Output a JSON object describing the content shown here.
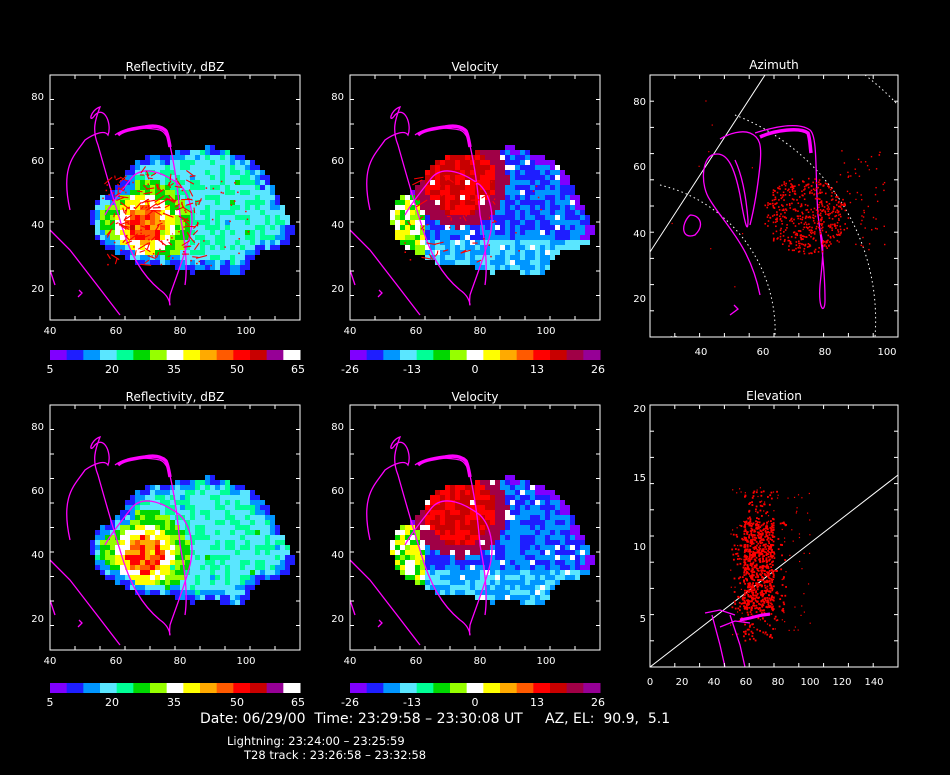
{
  "colors": {
    "background": "#000000",
    "axes": "#ffffff",
    "track": "#ff00ff",
    "lightning": "#ff0000",
    "palette": [
      "#8000ff",
      "#1e1eff",
      "#0096ff",
      "#5ae6ff",
      "#00ff96",
      "#00d700",
      "#96ff00",
      "#ffffff",
      "#ffff00",
      "#ffaa00",
      "#ff5a00",
      "#ff0000",
      "#c80000",
      "#a00046",
      "#960096"
    ]
  },
  "panels": [
    {
      "id": "refl-top",
      "title": "Reflectivity, dBZ",
      "field": "reflectivity",
      "xticks": [
        "40",
        "60",
        "80",
        "100"
      ],
      "yticks": [
        "20",
        "40",
        "60",
        "80"
      ],
      "colorbar_ticks": [
        "5",
        "20",
        "35",
        "50",
        "65"
      ],
      "lightning": "heavy"
    },
    {
      "id": "vel-top",
      "title": "Velocity",
      "field": "velocity",
      "xticks": [
        "40",
        "60",
        "80",
        "100"
      ],
      "yticks": [
        "20",
        "40",
        "60",
        "80"
      ],
      "colorbar_ticks": [
        "-26",
        "-13",
        "0",
        "13",
        "26"
      ],
      "lightning": "light"
    },
    {
      "id": "az",
      "title": "Azimuth",
      "xticks": [
        "40",
        "60",
        "80",
        "100"
      ],
      "yticks": [
        "20",
        "40",
        "60",
        "80"
      ]
    },
    {
      "id": "refl-bot",
      "title": "Reflectivity, dBZ",
      "field": "reflectivity",
      "xticks": [
        "40",
        "60",
        "80",
        "100"
      ],
      "yticks": [
        "20",
        "40",
        "60",
        "80"
      ],
      "colorbar_ticks": [
        "5",
        "20",
        "35",
        "50",
        "65"
      ],
      "lightning": "none"
    },
    {
      "id": "vel-bot",
      "title": "Velocity",
      "field": "velocity",
      "xticks": [
        "40",
        "60",
        "80",
        "100"
      ],
      "yticks": [
        "20",
        "40",
        "60",
        "80"
      ],
      "colorbar_ticks": [
        "-26",
        "-13",
        "0",
        "13",
        "26"
      ],
      "lightning": "none"
    },
    {
      "id": "el",
      "title": "Elevation",
      "xticks": [
        "0",
        "20",
        "40",
        "60",
        "80",
        "100",
        "120",
        "140"
      ],
      "yticks": [
        "5",
        "10",
        "15",
        "20"
      ]
    }
  ],
  "info": {
    "line1": "Date: 06/29/00  Time: 23:29:58 – 23:30:08 UT     AZ, EL:  90.9,  5.1",
    "line2": "Lightning: 23:24:00 – 23:25:59",
    "line3": "T28 track : 23:26:58 – 23:32:58"
  }
}
